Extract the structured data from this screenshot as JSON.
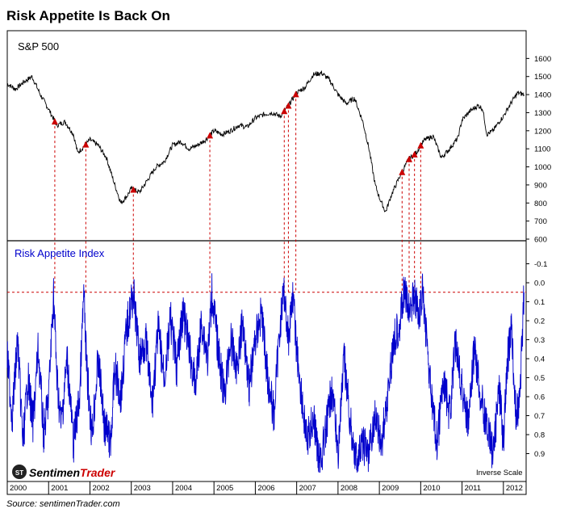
{
  "title": "Risk Appetite Is Back On",
  "source": "Source:  sentimenTrader.com",
  "logo": {
    "text_a": "Sentimen",
    "text_b": "Trader",
    "mark": "ST"
  },
  "colors": {
    "sp500_line": "#000000",
    "rai_line": "#0000cc",
    "marker": "#cc0000",
    "guide": "#cc0000",
    "label_blue": "#0000cc"
  },
  "chart_data": [
    {
      "type": "line",
      "title": "S&P 500",
      "ylim": [
        600,
        1700
      ],
      "yticks": [
        600,
        700,
        800,
        900,
        1000,
        1100,
        1200,
        1300,
        1400,
        1500,
        1600
      ],
      "series": [
        {
          "name": "S&P 500",
          "x": [
            2000.0,
            2000.2,
            2000.4,
            2000.6,
            2000.8,
            2001.0,
            2001.2,
            2001.4,
            2001.6,
            2001.7,
            2001.8,
            2002.0,
            2002.2,
            2002.4,
            2002.6,
            2002.75,
            2002.9,
            2003.0,
            2003.2,
            2003.4,
            2003.6,
            2003.8,
            2004.0,
            2004.2,
            2004.4,
            2004.6,
            2004.8,
            2005.0,
            2005.2,
            2005.4,
            2005.6,
            2005.8,
            2006.0,
            2006.2,
            2006.4,
            2006.6,
            2006.8,
            2007.0,
            2007.2,
            2007.4,
            2007.6,
            2007.8,
            2008.0,
            2008.2,
            2008.4,
            2008.6,
            2008.75,
            2008.9,
            2009.0,
            2009.15,
            2009.3,
            2009.5,
            2009.7,
            2009.9,
            2010.0,
            2010.1,
            2010.3,
            2010.5,
            2010.7,
            2010.9,
            2011.0,
            2011.2,
            2011.4,
            2011.5,
            2011.6,
            2011.75,
            2011.9,
            2012.0,
            2012.2,
            2012.35,
            2012.5
          ],
          "values": [
            1460,
            1430,
            1470,
            1500,
            1400,
            1320,
            1230,
            1250,
            1180,
            1080,
            1100,
            1150,
            1120,
            1050,
            900,
            800,
            840,
            880,
            860,
            930,
            1000,
            1030,
            1120,
            1140,
            1100,
            1120,
            1150,
            1200,
            1180,
            1200,
            1230,
            1220,
            1270,
            1290,
            1300,
            1280,
            1340,
            1410,
            1440,
            1510,
            1520,
            1480,
            1400,
            1350,
            1380,
            1250,
            1100,
            900,
            830,
            750,
            850,
            950,
            1040,
            1080,
            1120,
            1150,
            1170,
            1050,
            1100,
            1160,
            1260,
            1310,
            1340,
            1320,
            1180,
            1200,
            1250,
            1280,
            1360,
            1410,
            1400
          ]
        }
      ],
      "markers_x": [
        2001.15,
        2001.9,
        2003.05,
        2004.9,
        2006.7,
        2006.8,
        2006.98,
        2009.55,
        2009.72,
        2009.85,
        2010.0
      ]
    },
    {
      "type": "line",
      "title": "Risk Appetite Index",
      "ylim": [
        1.0,
        -0.2
      ],
      "yticks": [
        "-0.1",
        "0.0",
        "0.1",
        "0.2",
        "0.3",
        "0.4",
        "0.5",
        "0.6",
        "0.7",
        "0.8",
        "0.9"
      ],
      "threshold": 0.05,
      "annotation": "Inverse Scale",
      "series": [
        {
          "name": "Risk Appetite Index",
          "x": [
            2000.0,
            2000.12,
            2000.25,
            2000.38,
            2000.5,
            2000.62,
            2000.75,
            2000.88,
            2001.0,
            2001.12,
            2001.2,
            2001.3,
            2001.45,
            2001.6,
            2001.75,
            2001.85,
            2001.92,
            2002.05,
            2002.2,
            2002.35,
            2002.5,
            2002.6,
            2002.75,
            2002.88,
            2003.05,
            2003.2,
            2003.35,
            2003.5,
            2003.65,
            2003.8,
            2003.95,
            2004.1,
            2004.25,
            2004.4,
            2004.55,
            2004.7,
            2004.85,
            2004.95,
            2005.1,
            2005.25,
            2005.4,
            2005.55,
            2005.7,
            2005.85,
            2006.0,
            2006.15,
            2006.3,
            2006.45,
            2006.6,
            2006.7,
            2006.8,
            2006.9,
            2007.0,
            2007.12,
            2007.25,
            2007.4,
            2007.55,
            2007.7,
            2007.85,
            2008.0,
            2008.15,
            2008.3,
            2008.45,
            2008.6,
            2008.75,
            2008.9,
            2009.05,
            2009.2,
            2009.35,
            2009.5,
            2009.6,
            2009.72,
            2009.85,
            2009.95,
            2010.05,
            2010.15,
            2010.25,
            2010.4,
            2010.55,
            2010.7,
            2010.85,
            2011.0,
            2011.15,
            2011.3,
            2011.45,
            2011.6,
            2011.75,
            2011.9,
            2012.0,
            2012.1,
            2012.2,
            2012.3,
            2012.4,
            2012.5
          ],
          "values": [
            0.4,
            0.7,
            0.3,
            0.85,
            0.5,
            0.75,
            0.35,
            0.8,
            0.6,
            0.05,
            0.5,
            0.75,
            0.4,
            0.85,
            0.6,
            0.05,
            0.45,
            0.8,
            0.4,
            0.75,
            0.85,
            0.45,
            0.6,
            0.25,
            0.05,
            0.4,
            0.3,
            0.65,
            0.25,
            0.5,
            0.2,
            0.45,
            0.15,
            0.35,
            0.55,
            0.2,
            0.4,
            0.05,
            0.35,
            0.6,
            0.3,
            0.45,
            0.2,
            0.55,
            0.3,
            0.15,
            0.5,
            0.7,
            0.2,
            0.05,
            0.3,
            0.05,
            0.35,
            0.6,
            0.85,
            0.7,
            0.95,
            0.8,
            0.55,
            0.9,
            0.4,
            0.75,
            0.95,
            0.85,
            0.9,
            0.7,
            0.85,
            0.6,
            0.3,
            0.2,
            0.05,
            0.15,
            0.05,
            0.2,
            0.05,
            0.3,
            0.6,
            0.85,
            0.5,
            0.7,
            0.3,
            0.55,
            0.75,
            0.35,
            0.6,
            0.75,
            0.9,
            0.55,
            0.85,
            0.4,
            0.25,
            0.7,
            0.6,
            0.05
          ]
        }
      ]
    }
  ],
  "xaxis": {
    "labels": [
      "2000",
      "2001",
      "2002",
      "2003",
      "2004",
      "2005",
      "2006",
      "2007",
      "2008",
      "2009",
      "2010",
      "2011",
      "2012"
    ]
  }
}
